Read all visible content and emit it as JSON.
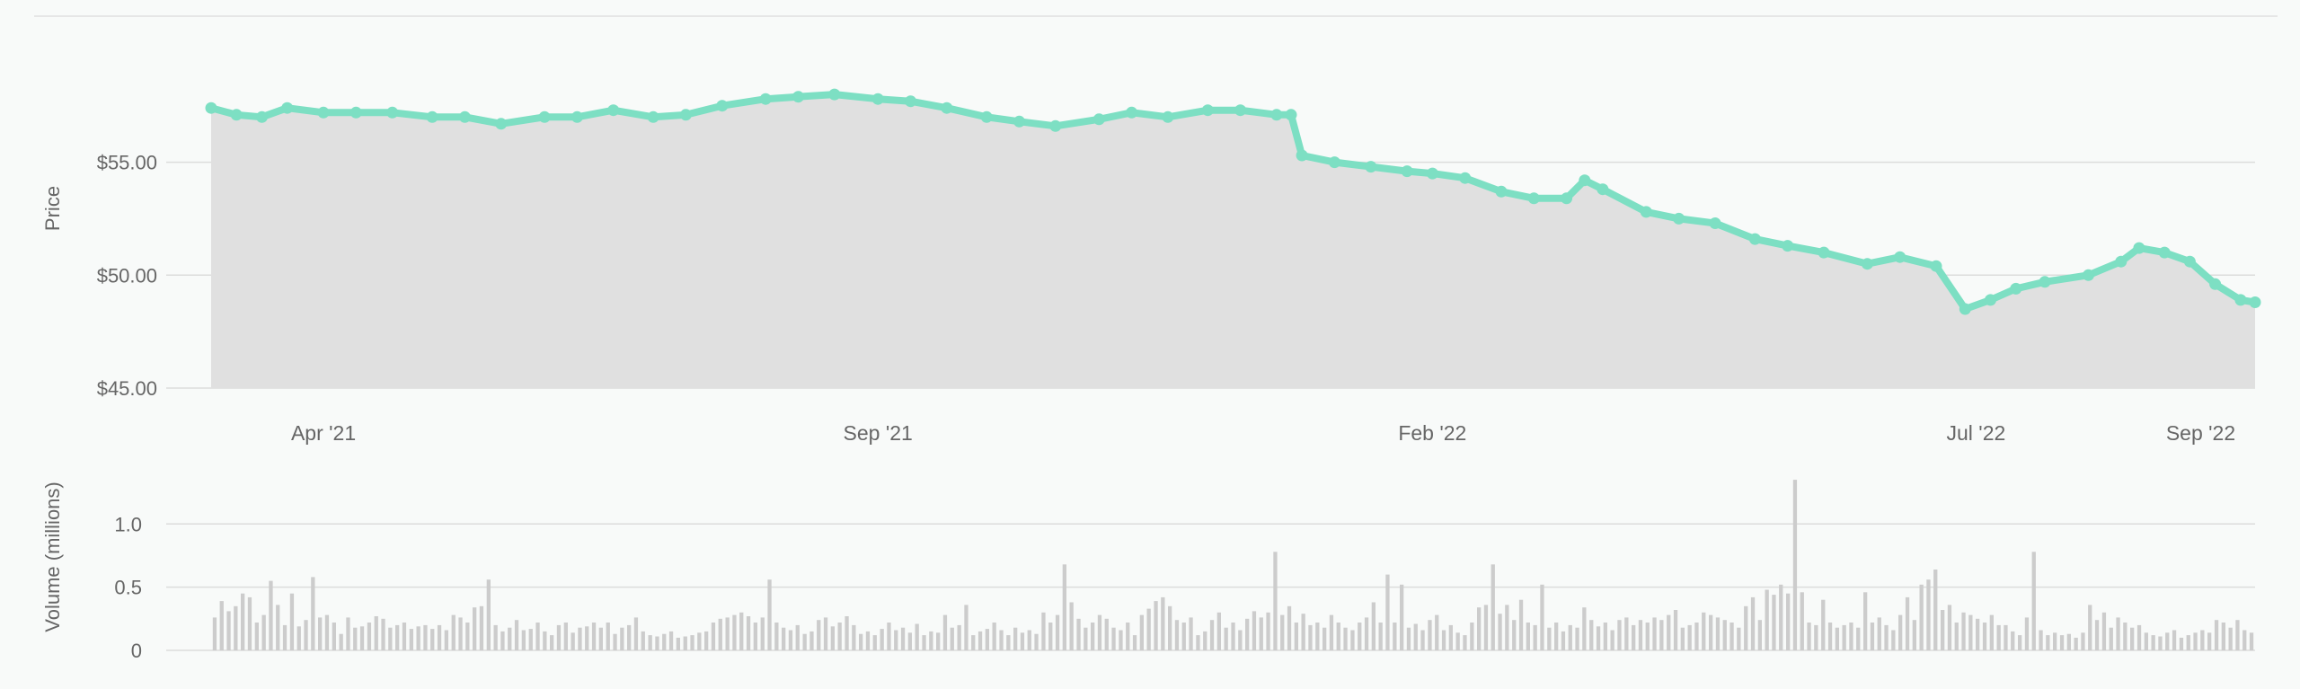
{
  "colors": {
    "background": "#f8faf9",
    "line": "#7ddfc3",
    "area": "#e0e0e0",
    "grid": "#dcdcdc",
    "volume_bar": "#cccccc",
    "text": "#666666"
  },
  "chart_data": [
    {
      "type": "area",
      "ylabel": "Price",
      "ylim": [
        45,
        59
      ],
      "y_ticks": [
        {
          "value": 45,
          "label": "$45.00"
        },
        {
          "value": 50,
          "label": "$50.00"
        },
        {
          "value": 55,
          "label": "$55.00"
        }
      ],
      "xlim": [
        "2021-03-01",
        "2022-09-16"
      ],
      "x_ticks": [
        {
          "date": "2021-04-01",
          "label": "Apr '21"
        },
        {
          "date": "2021-09-01",
          "label": "Sep '21"
        },
        {
          "date": "2022-02-01",
          "label": "Feb '22"
        },
        {
          "date": "2022-07-01",
          "label": "Jul '22"
        },
        {
          "date": "2022-09-01",
          "label": "Sep '22"
        }
      ],
      "grid": true,
      "series": [
        {
          "points": [
            [
              "2021-03-01",
              57.4
            ],
            [
              "2021-03-08",
              57.1
            ],
            [
              "2021-03-15",
              57.0
            ],
            [
              "2021-03-22",
              57.4
            ],
            [
              "2021-04-01",
              57.2
            ],
            [
              "2021-04-10",
              57.2
            ],
            [
              "2021-04-20",
              57.2
            ],
            [
              "2021-05-01",
              57.0
            ],
            [
              "2021-05-10",
              57.0
            ],
            [
              "2021-05-20",
              56.7
            ],
            [
              "2021-06-01",
              57.0
            ],
            [
              "2021-06-10",
              57.0
            ],
            [
              "2021-06-20",
              57.3
            ],
            [
              "2021-07-01",
              57.0
            ],
            [
              "2021-07-10",
              57.1
            ],
            [
              "2021-07-20",
              57.5
            ],
            [
              "2021-08-01",
              57.8
            ],
            [
              "2021-08-10",
              57.9
            ],
            [
              "2021-08-20",
              58.0
            ],
            [
              "2021-09-01",
              57.8
            ],
            [
              "2021-09-10",
              57.7
            ],
            [
              "2021-09-20",
              57.4
            ],
            [
              "2021-10-01",
              57.0
            ],
            [
              "2021-10-10",
              56.8
            ],
            [
              "2021-10-20",
              56.6
            ],
            [
              "2021-11-01",
              56.9
            ],
            [
              "2021-11-10",
              57.2
            ],
            [
              "2021-11-20",
              57.0
            ],
            [
              "2021-12-01",
              57.3
            ],
            [
              "2021-12-10",
              57.3
            ],
            [
              "2021-12-20",
              57.1
            ],
            [
              "2021-12-24",
              57.1
            ],
            [
              "2021-12-27",
              55.3
            ],
            [
              "2022-01-05",
              55.0
            ],
            [
              "2022-01-15",
              54.8
            ],
            [
              "2022-01-25",
              54.6
            ],
            [
              "2022-02-01",
              54.5
            ],
            [
              "2022-02-10",
              54.3
            ],
            [
              "2022-02-20",
              53.7
            ],
            [
              "2022-03-01",
              53.4
            ],
            [
              "2022-03-10",
              53.4
            ],
            [
              "2022-03-15",
              54.2
            ],
            [
              "2022-03-20",
              53.8
            ],
            [
              "2022-04-01",
              52.8
            ],
            [
              "2022-04-10",
              52.5
            ],
            [
              "2022-04-20",
              52.3
            ],
            [
              "2022-05-01",
              51.6
            ],
            [
              "2022-05-10",
              51.3
            ],
            [
              "2022-05-20",
              51.0
            ],
            [
              "2022-06-01",
              50.5
            ],
            [
              "2022-06-10",
              50.8
            ],
            [
              "2022-06-20",
              50.4
            ],
            [
              "2022-06-28",
              48.5
            ],
            [
              "2022-07-05",
              48.9
            ],
            [
              "2022-07-12",
              49.4
            ],
            [
              "2022-07-20",
              49.7
            ],
            [
              "2022-08-01",
              50.0
            ],
            [
              "2022-08-10",
              50.6
            ],
            [
              "2022-08-15",
              51.2
            ],
            [
              "2022-08-22",
              51.0
            ],
            [
              "2022-08-29",
              50.6
            ],
            [
              "2022-09-05",
              49.6
            ],
            [
              "2022-09-12",
              48.9
            ],
            [
              "2022-09-16",
              48.8
            ]
          ]
        }
      ]
    },
    {
      "type": "bar",
      "ylabel": "Volume (millions)",
      "ylim": [
        0,
        1.45
      ],
      "y_ticks": [
        {
          "value": 0,
          "label": "0"
        },
        {
          "value": 0.5,
          "label": "0.5"
        },
        {
          "value": 1.0,
          "label": "1.0"
        }
      ],
      "grid": true,
      "values": [
        0.26,
        0.39,
        0.31,
        0.35,
        0.45,
        0.42,
        0.22,
        0.28,
        0.55,
        0.36,
        0.2,
        0.45,
        0.19,
        0.24,
        0.58,
        0.26,
        0.28,
        0.22,
        0.13,
        0.26,
        0.18,
        0.19,
        0.22,
        0.27,
        0.25,
        0.18,
        0.2,
        0.22,
        0.17,
        0.19,
        0.2,
        0.17,
        0.2,
        0.16,
        0.28,
        0.26,
        0.22,
        0.34,
        0.35,
        0.56,
        0.2,
        0.15,
        0.18,
        0.24,
        0.16,
        0.17,
        0.22,
        0.15,
        0.12,
        0.2,
        0.22,
        0.14,
        0.18,
        0.19,
        0.22,
        0.18,
        0.22,
        0.13,
        0.18,
        0.2,
        0.26,
        0.15,
        0.12,
        0.11,
        0.13,
        0.15,
        0.1,
        0.11,
        0.12,
        0.14,
        0.15,
        0.22,
        0.25,
        0.26,
        0.28,
        0.3,
        0.27,
        0.22,
        0.26,
        0.56,
        0.22,
        0.18,
        0.16,
        0.2,
        0.13,
        0.15,
        0.24,
        0.26,
        0.19,
        0.22,
        0.27,
        0.2,
        0.13,
        0.15,
        0.12,
        0.17,
        0.22,
        0.16,
        0.18,
        0.14,
        0.21,
        0.12,
        0.15,
        0.14,
        0.28,
        0.18,
        0.2,
        0.36,
        0.12,
        0.15,
        0.17,
        0.22,
        0.16,
        0.12,
        0.18,
        0.14,
        0.16,
        0.13,
        0.3,
        0.22,
        0.28,
        0.68,
        0.38,
        0.25,
        0.18,
        0.22,
        0.28,
        0.25,
        0.18,
        0.16,
        0.22,
        0.12,
        0.28,
        0.33,
        0.39,
        0.42,
        0.35,
        0.24,
        0.22,
        0.26,
        0.12,
        0.15,
        0.24,
        0.3,
        0.18,
        0.22,
        0.16,
        0.25,
        0.31,
        0.26,
        0.3,
        0.78,
        0.28,
        0.35,
        0.22,
        0.29,
        0.2,
        0.22,
        0.18,
        0.28,
        0.22,
        0.18,
        0.16,
        0.22,
        0.26,
        0.38,
        0.22,
        0.6,
        0.22,
        0.52,
        0.18,
        0.21,
        0.16,
        0.24,
        0.28,
        0.16,
        0.2,
        0.14,
        0.12,
        0.22,
        0.34,
        0.36,
        0.68,
        0.29,
        0.36,
        0.24,
        0.4,
        0.22,
        0.2,
        0.52,
        0.18,
        0.22,
        0.15,
        0.2,
        0.18,
        0.34,
        0.24,
        0.19,
        0.22,
        0.16,
        0.24,
        0.26,
        0.2,
        0.24,
        0.22,
        0.26,
        0.24,
        0.28,
        0.32,
        0.18,
        0.2,
        0.22,
        0.3,
        0.28,
        0.26,
        0.24,
        0.22,
        0.18,
        0.35,
        0.42,
        0.24,
        0.48,
        0.44,
        0.52,
        0.45,
        1.35,
        0.46,
        0.22,
        0.2,
        0.4,
        0.22,
        0.18,
        0.2,
        0.22,
        0.18,
        0.46,
        0.22,
        0.26,
        0.2,
        0.16,
        0.28,
        0.42,
        0.24,
        0.52,
        0.56,
        0.64,
        0.32,
        0.36,
        0.22,
        0.3,
        0.28,
        0.25,
        0.22,
        0.28,
        0.2,
        0.2,
        0.15,
        0.12,
        0.26,
        0.78,
        0.16,
        0.12,
        0.14,
        0.12,
        0.13,
        0.1,
        0.14,
        0.36,
        0.24,
        0.3,
        0.18,
        0.26,
        0.22,
        0.18,
        0.2,
        0.14,
        0.12,
        0.11,
        0.14,
        0.16,
        0.1,
        0.12,
        0.14,
        0.16,
        0.14,
        0.24,
        0.22,
        0.18,
        0.24,
        0.16,
        0.14
      ]
    }
  ]
}
